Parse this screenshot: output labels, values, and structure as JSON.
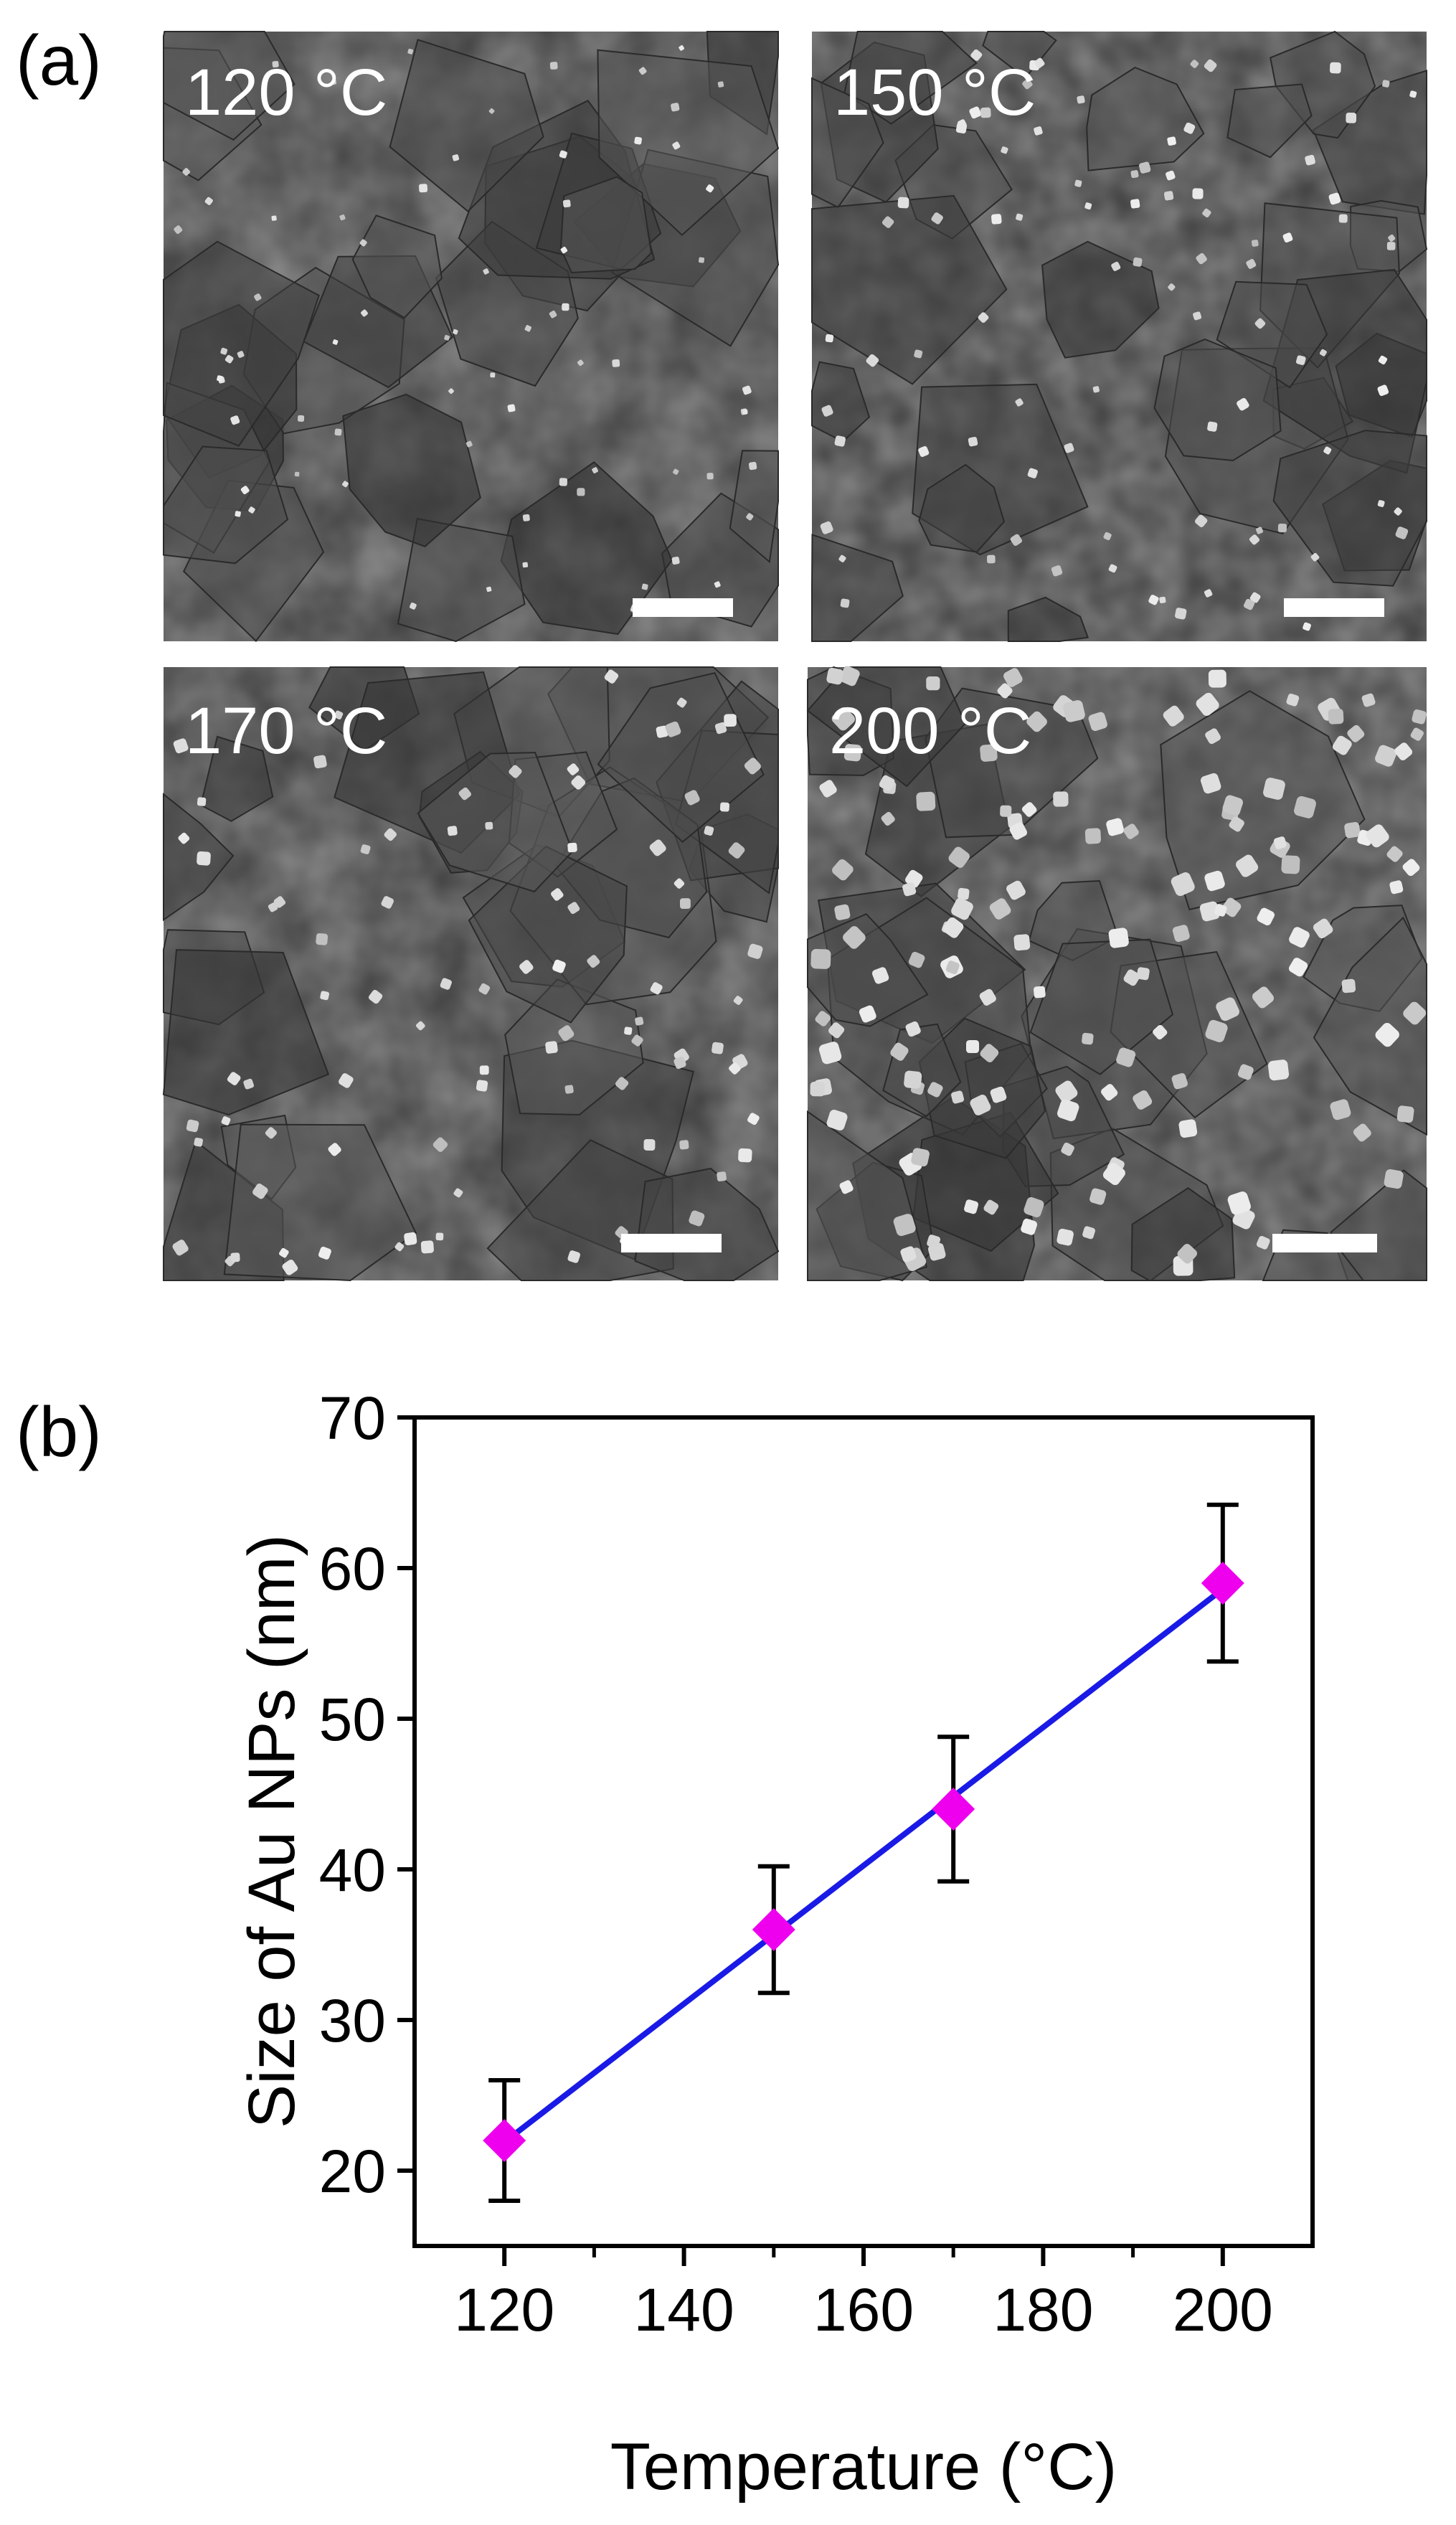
{
  "panel_a": {
    "label": "(a)",
    "images": [
      {
        "label": "120 °C"
      },
      {
        "label": "150 °C"
      },
      {
        "label": "170 °C"
      },
      {
        "label": "200 °C"
      }
    ]
  },
  "panel_b": {
    "label": "(b)"
  },
  "colors": {
    "line": "#1a1ae6",
    "marker": "#ee00ee",
    "errorbar": "#000000",
    "sem_bg": "#3c3c3c"
  },
  "chart_data": {
    "type": "scatter",
    "x": [
      120,
      150,
      170,
      200
    ],
    "y": [
      22,
      36,
      44,
      59
    ],
    "error": [
      4,
      4.2,
      4.8,
      5.2
    ],
    "fit": {
      "type": "linear",
      "color": "#1a1ae6"
    },
    "marker": "diamond",
    "xlabel": "Temperature (°C)",
    "ylabel": "Size of Au NPs (nm)",
    "xlim": [
      110,
      210
    ],
    "ylim": [
      15,
      70
    ],
    "xticks": [
      120,
      140,
      160,
      180,
      200
    ],
    "yticks": [
      20,
      30,
      40,
      50,
      60,
      70
    ],
    "grid": false
  }
}
